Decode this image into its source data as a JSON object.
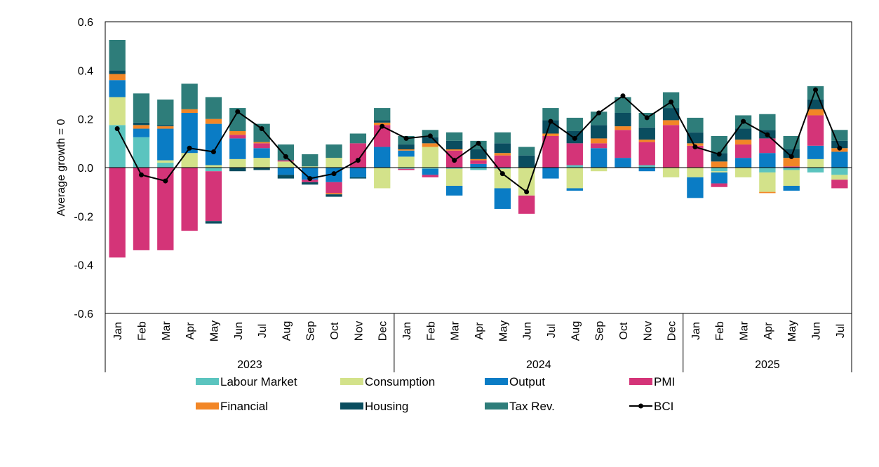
{
  "chart_data": {
    "type": "bar",
    "stacked": true,
    "title": "",
    "xlabel": "",
    "ylabel": "Average growth = 0",
    "ylim": [
      -0.6,
      0.6
    ],
    "yticks": [
      "0.6",
      "0.4",
      "0.2",
      "0.0",
      "-0.2",
      "-0.4",
      "-0.6"
    ],
    "ytick_values": [
      0.6,
      0.4,
      0.2,
      0.0,
      -0.2,
      -0.4,
      -0.6
    ],
    "categories": [
      "Jan",
      "Feb",
      "Mar",
      "Apr",
      "May",
      "Jun",
      "Jul",
      "Aug",
      "Sep",
      "Oct",
      "Nov",
      "Dec",
      "Jan",
      "Feb",
      "Mar",
      "Apr",
      "May",
      "Jun",
      "Jul",
      "Aug",
      "Sep",
      "Oct",
      "Nov",
      "Dec",
      "Jan",
      "Feb",
      "Mar",
      "Apr",
      "May",
      "Jun",
      "Jul"
    ],
    "years": [
      {
        "label": "2023",
        "start": 0,
        "end": 11
      },
      {
        "label": "2024",
        "start": 12,
        "end": 23
      },
      {
        "label": "2025",
        "start": 24,
        "end": 30
      }
    ],
    "series": [
      {
        "name": "Labour Market",
        "type": "bar",
        "color": "#5BC4BF",
        "values": [
          0.175,
          0.125,
          0.02,
          0,
          -0.015,
          0,
          0,
          0,
          0,
          0,
          0,
          0,
          -0.005,
          -0.005,
          -0.005,
          -0.01,
          -0.005,
          0,
          0,
          0.01,
          0,
          0,
          0.01,
          0,
          0,
          -0.015,
          0,
          -0.02,
          -0.01,
          -0.02,
          -0.03
        ]
      },
      {
        "name": "Consumption",
        "type": "bar",
        "color": "#D3E28A",
        "values": [
          0.115,
          0,
          0.01,
          0.06,
          0.01,
          0.035,
          0.04,
          0.025,
          0.005,
          0.04,
          0,
          -0.085,
          0.045,
          0.085,
          -0.07,
          0,
          -0.08,
          -0.115,
          0,
          -0.085,
          -0.015,
          0,
          0,
          -0.04,
          -0.04,
          -0.005,
          -0.04,
          -0.08,
          -0.065,
          0.035,
          -0.02
        ]
      },
      {
        "name": "Output",
        "type": "bar",
        "color": "#0A7CC5",
        "values": [
          0.07,
          0.035,
          0.13,
          0.165,
          0.17,
          0.085,
          0.04,
          -0.03,
          -0.05,
          -0.06,
          -0.04,
          0.085,
          0.025,
          -0.025,
          -0.04,
          0.015,
          -0.085,
          0,
          -0.045,
          -0.01,
          0.08,
          0.04,
          -0.015,
          0,
          -0.085,
          -0.045,
          0.04,
          0.06,
          -0.02,
          0.055,
          0.065
        ]
      },
      {
        "name": "PMI",
        "type": "bar",
        "color": "#D43478",
        "values": [
          -0.37,
          -0.34,
          -0.34,
          -0.26,
          -0.205,
          0.015,
          0.02,
          0.005,
          -0.01,
          -0.045,
          0.1,
          0.09,
          -0.005,
          -0.01,
          0.07,
          0.015,
          0.05,
          -0.075,
          0.13,
          0.09,
          0.02,
          0.115,
          0.095,
          0.175,
          0.09,
          -0.015,
          0.055,
          0.06,
          0.005,
          0.125,
          -0.035
        ]
      },
      {
        "name": "Financial",
        "type": "bar",
        "color": "#F28626",
        "values": [
          0.025,
          0.015,
          0.01,
          0.015,
          0.02,
          0.015,
          0.005,
          0,
          0,
          -0.005,
          0,
          0.01,
          0.005,
          0.015,
          0.005,
          0.005,
          0.01,
          0,
          0.01,
          0,
          0.02,
          0.015,
          0.01,
          0.02,
          0.01,
          0.025,
          0.02,
          -0.005,
          0.035,
          0.025,
          0.015
        ]
      },
      {
        "name": "Housing",
        "type": "bar",
        "color": "#0A4D5F",
        "values": [
          0.015,
          0.01,
          0.005,
          0,
          -0.01,
          -0.015,
          -0.01,
          -0.015,
          -0.01,
          -0.01,
          -0.005,
          0.01,
          0.02,
          0.025,
          0.035,
          0.04,
          0.04,
          0.05,
          0.055,
          0.05,
          0.055,
          0.055,
          0.05,
          0.05,
          0.045,
          0.035,
          0.045,
          0.035,
          0.035,
          0.04,
          0.03
        ]
      },
      {
        "name": "Tax Rev.",
        "type": "bar",
        "color": "#2E7D7A",
        "values": [
          0.125,
          0.12,
          0.105,
          0.105,
          0.09,
          0.095,
          0.075,
          0.065,
          0.05,
          0.055,
          0.04,
          0.05,
          0.035,
          0.03,
          0.035,
          0.035,
          0.045,
          0.035,
          0.05,
          0.055,
          0.055,
          0.065,
          0.06,
          0.065,
          0.06,
          0.07,
          0.055,
          0.065,
          0.055,
          0.055,
          0.045
        ]
      },
      {
        "name": "BCI",
        "type": "line",
        "color": "#000000",
        "values": [
          0.16,
          -0.03,
          -0.055,
          0.08,
          0.065,
          0.23,
          0.16,
          0.045,
          -0.045,
          -0.025,
          0.03,
          0.17,
          0.12,
          0.13,
          0.03,
          0.1,
          -0.025,
          -0.1,
          0.19,
          0.12,
          0.225,
          0.295,
          0.205,
          0.27,
          0.085,
          0.055,
          0.19,
          0.135,
          0.045,
          0.32,
          0.08
        ]
      }
    ],
    "legend": {
      "position": "bottom",
      "items": [
        {
          "label": "Labour Market",
          "kind": "bar",
          "color": "#5BC4BF"
        },
        {
          "label": "Consumption",
          "kind": "bar",
          "color": "#D3E28A"
        },
        {
          "label": "Output",
          "kind": "bar",
          "color": "#0A7CC5"
        },
        {
          "label": "PMI",
          "kind": "bar",
          "color": "#D43478"
        },
        {
          "label": "Financial",
          "kind": "bar",
          "color": "#F28626"
        },
        {
          "label": "Housing",
          "kind": "bar",
          "color": "#0A4D5F"
        },
        {
          "label": "Tax Rev.",
          "kind": "bar",
          "color": "#2E7D7A"
        },
        {
          "label": "BCI",
          "kind": "line",
          "color": "#000000"
        }
      ]
    }
  }
}
